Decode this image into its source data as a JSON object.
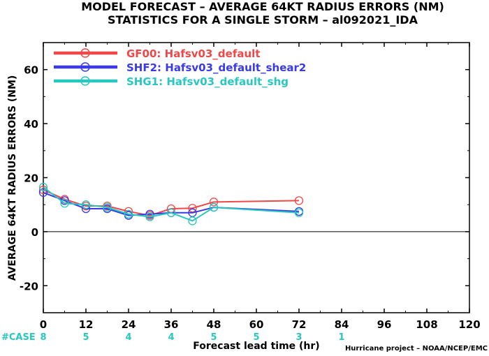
{
  "chart_data": {
    "type": "line",
    "title": "MODEL FORECAST – AVERAGE 64KT RADIUS ERRORS (NM)",
    "subtitle": "STATISTICS FOR A SINGLE STORM – al092021_IDA",
    "xlabel": "Forecast lead time (hr)",
    "ylabel": "AVERAGE 64KT RADIUS ERRORS (NM)",
    "credit": "Hurricane project – NOAA/NCEP/EMC",
    "xlim": [
      0,
      120
    ],
    "ylim": [
      -30,
      70
    ],
    "x_ticks": [
      0,
      12,
      24,
      36,
      48,
      60,
      72,
      84,
      96,
      108,
      120
    ],
    "y_ticks": [
      -20,
      0,
      20,
      40,
      60
    ],
    "grid": false,
    "zero_line": true,
    "legend_position": "top-left",
    "series": [
      {
        "name": "GF00: Hafsv03_default",
        "color": "#f04848",
        "x": [
          0,
          6,
          12,
          18,
          24,
          30,
          36,
          42,
          48,
          72
        ],
        "y": [
          15.5,
          12,
          9.5,
          9.5,
          7.5,
          6,
          8.5,
          8.7,
          11,
          11.5
        ]
      },
      {
        "name": "SHF2: Hafsv03_default_shear2",
        "color": "#3a3ae6",
        "x": [
          0,
          6,
          12,
          18,
          24,
          30,
          36,
          42,
          48,
          72
        ],
        "y": [
          14.5,
          11.5,
          8.5,
          8.5,
          6,
          6.5,
          7,
          7,
          9,
          7.5
        ]
      },
      {
        "name": "SHG1: Hafsv03_default_shg",
        "color": "#29c7c1",
        "x": [
          0,
          6,
          12,
          18,
          24,
          30,
          36,
          42,
          48,
          72
        ],
        "y": [
          16.5,
          10.5,
          10,
          9,
          6.5,
          5.5,
          7,
          4,
          9,
          7
        ]
      }
    ],
    "case_label": "#CASE",
    "case_color": "#29c7c1",
    "cases": [
      {
        "x": 0,
        "n": "8"
      },
      {
        "x": 12,
        "n": "5"
      },
      {
        "x": 24,
        "n": "4"
      },
      {
        "x": 36,
        "n": "4"
      },
      {
        "x": 48,
        "n": "5"
      },
      {
        "x": 60,
        "n": "5"
      },
      {
        "x": 72,
        "n": "3"
      },
      {
        "x": 84,
        "n": "1"
      }
    ]
  }
}
